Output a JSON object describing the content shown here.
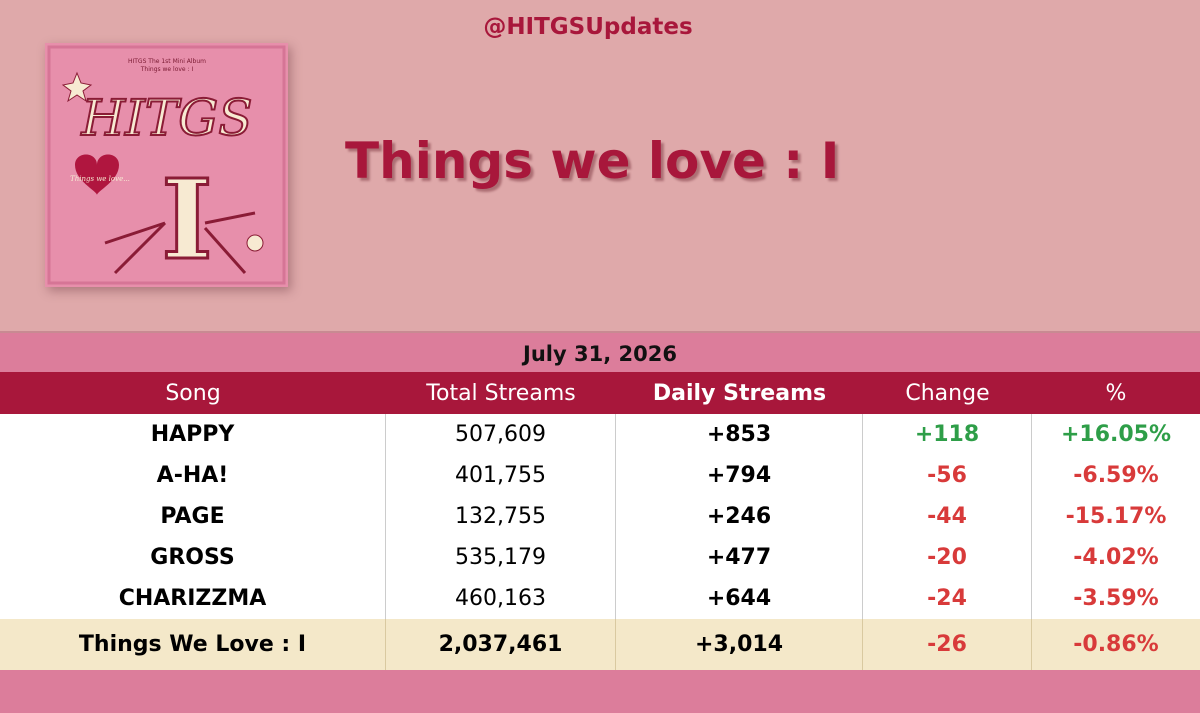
{
  "header": {
    "handle": "@HITGSUpdates",
    "title": "Things we love : I"
  },
  "cover": {
    "caption": "HITGS The 1st Mini Album",
    "caption_title": "Things we love : I",
    "logo": "HITGS",
    "script": "Things we love..."
  },
  "table": {
    "date": "July 31, 2026",
    "columns": [
      "Song",
      "Total Streams",
      "Daily Streams",
      "Change",
      "%"
    ],
    "rows": [
      [
        "HAPPY",
        "507,609",
        "+853",
        "+118",
        "+16.05%"
      ],
      [
        "A-HA!",
        "401,755",
        "+794",
        "-56",
        "-6.59%"
      ],
      [
        "PAGE",
        "132,755",
        "+246",
        "-44",
        "-15.17%"
      ],
      [
        "GROSS",
        "535,179",
        "+477",
        "-20",
        "-4.02%"
      ],
      [
        "CHARIZZMA",
        "460,163",
        "+644",
        "-24",
        "-3.59%"
      ]
    ],
    "total": [
      "Things We Love : I",
      "2,037,461",
      "+3,014",
      "-26",
      "-0.86%"
    ]
  }
}
